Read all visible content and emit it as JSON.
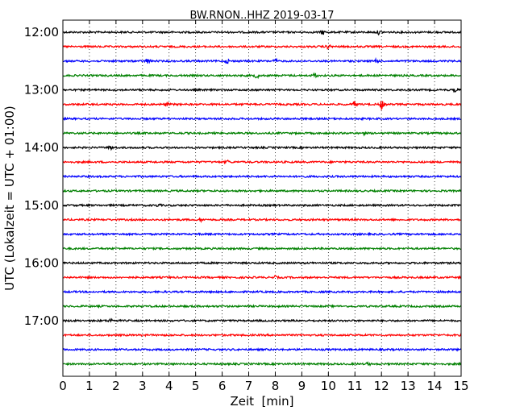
{
  "chart_data": {
    "type": "line",
    "title": "BW.RNON..HHZ 2019-03-17",
    "xlabel": "Zeit  [min]",
    "ylabel": "UTC (Lokalzeit = UTC + 01:00)",
    "xlim": [
      0,
      15
    ],
    "x_ticks": [
      "0",
      "1",
      "2",
      "3",
      "4",
      "5",
      "6",
      "7",
      "8",
      "9",
      "10",
      "11",
      "12",
      "13",
      "14",
      "15"
    ],
    "y_tick_labels": [
      "12:00",
      "13:00",
      "14:00",
      "15:00",
      "16:00",
      "17:00"
    ],
    "grid": {
      "x": true,
      "y": false,
      "style": "dotted"
    },
    "colors": [
      "#000000",
      "#ff0000",
      "#0000ff",
      "#008000"
    ],
    "traces": [
      {
        "start": "12:00",
        "color": "#000000",
        "events": [
          {
            "t": 9.8,
            "amp": 2.5
          },
          {
            "t": 11.9,
            "amp": 2
          }
        ]
      },
      {
        "start": "12:15",
        "color": "#ff0000",
        "events": [
          {
            "t": 10.0,
            "amp": 2.5
          }
        ]
      },
      {
        "start": "12:30",
        "color": "#0000ff",
        "events": [
          {
            "t": 3.2,
            "amp": 3
          },
          {
            "t": 6.2,
            "amp": 2
          },
          {
            "t": 8.0,
            "amp": 2
          },
          {
            "t": 11.8,
            "amp": 3
          }
        ]
      },
      {
        "start": "12:45",
        "color": "#008000",
        "events": [
          {
            "t": 7.3,
            "amp": 3
          },
          {
            "t": 9.5,
            "amp": 3
          }
        ]
      },
      {
        "start": "13:00",
        "color": "#000000",
        "events": [
          {
            "t": 14.8,
            "amp": 2
          }
        ]
      },
      {
        "start": "13:15",
        "color": "#ff0000",
        "events": [
          {
            "t": 3.9,
            "amp": 2
          },
          {
            "t": 11.0,
            "amp": 4
          },
          {
            "t": 12.0,
            "amp": 6
          }
        ]
      },
      {
        "start": "13:30",
        "color": "#0000ff",
        "events": []
      },
      {
        "start": "13:45",
        "color": "#008000",
        "events": [
          {
            "t": 11.3,
            "amp": 1.5
          }
        ]
      },
      {
        "start": "14:00",
        "color": "#000000",
        "events": [
          {
            "t": 1.8,
            "amp": 2
          }
        ]
      },
      {
        "start": "14:15",
        "color": "#ff0000",
        "events": [
          {
            "t": 6.2,
            "amp": 2
          }
        ]
      },
      {
        "start": "14:30",
        "color": "#0000ff",
        "events": []
      },
      {
        "start": "14:45",
        "color": "#008000",
        "events": []
      },
      {
        "start": "15:00",
        "color": "#000000",
        "events": [
          {
            "t": 3.6,
            "amp": 1.5
          }
        ]
      },
      {
        "start": "15:15",
        "color": "#ff0000",
        "events": [
          {
            "t": 5.2,
            "amp": 1.5
          }
        ]
      },
      {
        "start": "15:30",
        "color": "#0000ff",
        "events": []
      },
      {
        "start": "15:45",
        "color": "#008000",
        "events": []
      },
      {
        "start": "16:00",
        "color": "#000000",
        "events": []
      },
      {
        "start": "16:15",
        "color": "#ff0000",
        "events": [
          {
            "t": 8.0,
            "amp": 1.5
          }
        ]
      },
      {
        "start": "16:30",
        "color": "#0000ff",
        "events": []
      },
      {
        "start": "16:45",
        "color": "#008000",
        "events": []
      },
      {
        "start": "17:00",
        "color": "#000000",
        "events": [
          {
            "t": 1.8,
            "amp": 2
          }
        ]
      },
      {
        "start": "17:15",
        "color": "#ff0000",
        "events": []
      },
      {
        "start": "17:30",
        "color": "#0000ff",
        "events": []
      },
      {
        "start": "17:45",
        "color": "#008000",
        "events": [
          {
            "t": 11.5,
            "amp": 1.5
          }
        ]
      }
    ]
  }
}
